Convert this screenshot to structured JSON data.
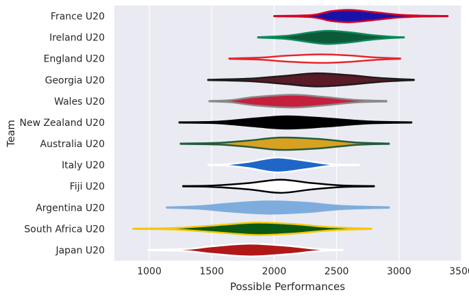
{
  "chart_data": {
    "type": "violin",
    "xlabel": "Possible Performances",
    "ylabel": "Team",
    "xlim": [
      720,
      3500
    ],
    "xticks": [
      1000,
      1500,
      2000,
      2500,
      3000,
      3500
    ],
    "grid": true,
    "background": "#eaeaf2",
    "series": [
      {
        "name": "France U20",
        "fill": "#1a12a8",
        "outline": "#d6002a",
        "whisker": [
          2000,
          3390
        ],
        "shape": [
          [
            2000,
            0.02
          ],
          [
            2300,
            0.1
          ],
          [
            2450,
            0.45
          ],
          [
            2600,
            0.58
          ],
          [
            2780,
            0.4
          ],
          [
            3000,
            0.13
          ],
          [
            3200,
            0.04
          ],
          [
            3390,
            0.02
          ]
        ]
      },
      {
        "name": "Ireland U20",
        "fill": "#0c5a39",
        "outline": "#0a8a5a",
        "whisker": [
          1870,
          3040
        ],
        "shape": [
          [
            1870,
            0.02
          ],
          [
            2100,
            0.15
          ],
          [
            2300,
            0.48
          ],
          [
            2430,
            0.62
          ],
          [
            2600,
            0.48
          ],
          [
            2780,
            0.22
          ],
          [
            2950,
            0.06
          ],
          [
            3040,
            0.02
          ]
        ]
      },
      {
        "name": "England U20",
        "fill": "#ffffff",
        "outline": "#e5262c",
        "whisker": [
          1640,
          3010
        ],
        "shape": [
          [
            1640,
            0.02
          ],
          [
            1900,
            0.1
          ],
          [
            2100,
            0.28
          ],
          [
            2380,
            0.4
          ],
          [
            2600,
            0.3
          ],
          [
            2800,
            0.12
          ],
          [
            3010,
            0.02
          ]
        ]
      },
      {
        "name": "Georgia U20",
        "fill": "#5a1a26",
        "outline": "#1c1c1c",
        "whisker": [
          1470,
          3120
        ],
        "shape": [
          [
            1470,
            0.02
          ],
          [
            1800,
            0.12
          ],
          [
            2100,
            0.4
          ],
          [
            2340,
            0.62
          ],
          [
            2600,
            0.45
          ],
          [
            2850,
            0.18
          ],
          [
            3120,
            0.02
          ]
        ]
      },
      {
        "name": "Wales U20",
        "fill": "#c4203e",
        "outline": "#8a8a8a",
        "whisker": [
          1480,
          2900
        ],
        "shape": [
          [
            1480,
            0.02
          ],
          [
            1650,
            0.1
          ],
          [
            1850,
            0.4
          ],
          [
            2150,
            0.6
          ],
          [
            2400,
            0.4
          ],
          [
            2650,
            0.12
          ],
          [
            2900,
            0.03
          ]
        ]
      },
      {
        "name": "New Zealand U20",
        "fill": "#000000",
        "outline": "#000000",
        "whisker": [
          1240,
          3100
        ],
        "shape": [
          [
            1240,
            0.02
          ],
          [
            1550,
            0.08
          ],
          [
            1850,
            0.38
          ],
          [
            2100,
            0.58
          ],
          [
            2400,
            0.4
          ],
          [
            2750,
            0.1
          ],
          [
            3100,
            0.02
          ]
        ]
      },
      {
        "name": "Australia U20",
        "fill": "#d9a120",
        "outline": "#215c3d",
        "whisker": [
          1250,
          2920
        ],
        "shape": [
          [
            1250,
            0.02
          ],
          [
            1550,
            0.08
          ],
          [
            1800,
            0.3
          ],
          [
            2050,
            0.58
          ],
          [
            2350,
            0.45
          ],
          [
            2650,
            0.12
          ],
          [
            2920,
            0.02
          ]
        ]
      },
      {
        "name": "Italy U20",
        "fill": "#1f66c7",
        "outline": "#ffffff",
        "whisker": [
          1470,
          2680
        ],
        "shape": [
          [
            1470,
            0.02
          ],
          [
            1600,
            0.05
          ],
          [
            1800,
            0.3
          ],
          [
            2020,
            0.7
          ],
          [
            2250,
            0.4
          ],
          [
            2450,
            0.08
          ],
          [
            2680,
            0.02
          ]
        ]
      },
      {
        "name": "Fiji U20",
        "fill": "#ffffff",
        "outline": "#000000",
        "whisker": [
          1270,
          2800
        ],
        "shape": [
          [
            1270,
            0.02
          ],
          [
            1500,
            0.06
          ],
          [
            1800,
            0.3
          ],
          [
            2050,
            0.62
          ],
          [
            2300,
            0.3
          ],
          [
            2550,
            0.07
          ],
          [
            2800,
            0.02
          ]
        ]
      },
      {
        "name": "Argentina U20",
        "fill": "#7eaddd",
        "outline": "#7eaddd",
        "whisker": [
          1140,
          2920
        ],
        "shape": [
          [
            1140,
            0.02
          ],
          [
            1400,
            0.12
          ],
          [
            1650,
            0.38
          ],
          [
            1950,
            0.58
          ],
          [
            2250,
            0.45
          ],
          [
            2550,
            0.15
          ],
          [
            2920,
            0.03
          ]
        ]
      },
      {
        "name": "South Africa U20",
        "fill": "#0b5a13",
        "outline": "#f6c800",
        "whisker": [
          870,
          2780
        ],
        "shape": [
          [
            870,
            0.02
          ],
          [
            1200,
            0.07
          ],
          [
            1500,
            0.3
          ],
          [
            1850,
            0.58
          ],
          [
            2150,
            0.45
          ],
          [
            2450,
            0.15
          ],
          [
            2780,
            0.02
          ]
        ]
      },
      {
        "name": "Japan U20",
        "fill": "#b01818",
        "outline": "#ffffff",
        "whisker": [
          990,
          2550
        ],
        "shape": [
          [
            990,
            0.02
          ],
          [
            1300,
            0.1
          ],
          [
            1500,
            0.35
          ],
          [
            1800,
            0.6
          ],
          [
            2100,
            0.4
          ],
          [
            2350,
            0.1
          ],
          [
            2550,
            0.02
          ]
        ]
      }
    ]
  }
}
